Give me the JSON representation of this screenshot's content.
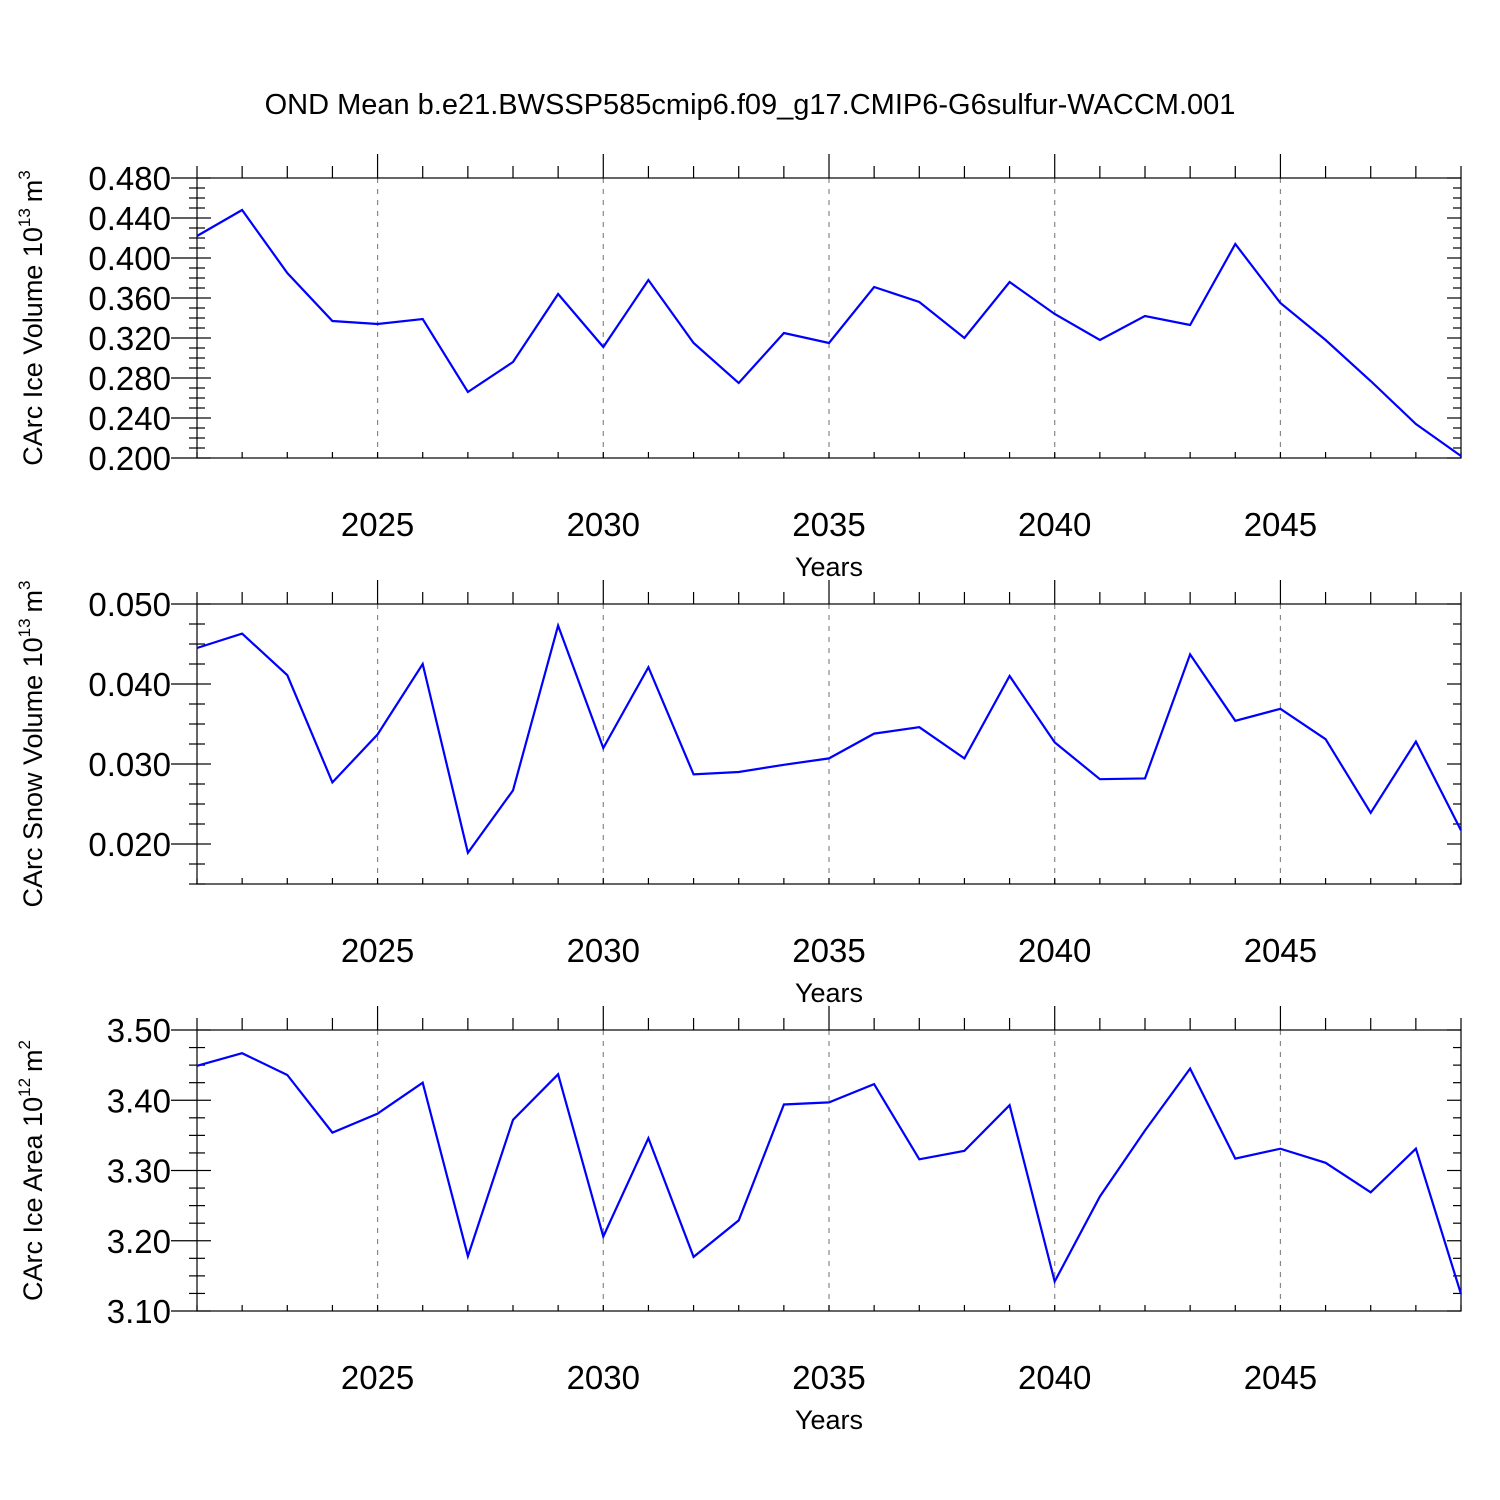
{
  "figure": {
    "title": "OND Mean b.e21.BWSSP585cmip6.f09_g17.CMIP6-G6sulfur-WACCM.001",
    "line_color": "#0000ff"
  },
  "chart_data": [
    {
      "type": "line",
      "title": "OND Mean b.e21.BWSSP585cmip6.f09_g17.CMIP6-G6sulfur-WACCM.001",
      "xlabel": "Years",
      "ylabel_prefix": "CArc Ice Volume 10",
      "ylabel_exponent": "13",
      "ylabel_unit": "m",
      "ylabel_unit_exponent": "3",
      "xlim": [
        2021,
        2049
      ],
      "ylim": [
        0.2,
        0.48
      ],
      "x_ticks": [
        2025,
        2030,
        2035,
        2040,
        2045
      ],
      "y_ticks": [
        0.2,
        0.24,
        0.28,
        0.32,
        0.36,
        0.4,
        0.44,
        0.48
      ],
      "y_tick_labels": [
        "0.200",
        "0.240",
        "0.280",
        "0.320",
        "0.360",
        "0.400",
        "0.440",
        "0.480"
      ],
      "grid": "vertical dashed at major x ticks",
      "series": [
        {
          "name": "CArc Ice Volume",
          "x": [
            2021,
            2022,
            2023,
            2024,
            2025,
            2026,
            2027,
            2028,
            2029,
            2030,
            2031,
            2032,
            2033,
            2034,
            2035,
            2036,
            2037,
            2038,
            2039,
            2040,
            2041,
            2042,
            2043,
            2044,
            2045,
            2046,
            2047,
            2048,
            2049
          ],
          "values": [
            0.422,
            0.448,
            0.385,
            0.337,
            0.334,
            0.339,
            0.266,
            0.296,
            0.364,
            0.311,
            0.378,
            0.315,
            0.275,
            0.325,
            0.315,
            0.371,
            0.356,
            0.32,
            0.376,
            0.344,
            0.318,
            0.342,
            0.333,
            0.414,
            0.355,
            0.318,
            0.277,
            0.234,
            0.202
          ]
        }
      ]
    },
    {
      "type": "line",
      "xlabel": "Years",
      "ylabel_prefix": "CArc Snow Volume 10",
      "ylabel_exponent": "13",
      "ylabel_unit": "m",
      "ylabel_unit_exponent": "3",
      "xlim": [
        2021,
        2049
      ],
      "ylim": [
        0.015,
        0.05
      ],
      "x_ticks": [
        2025,
        2030,
        2035,
        2040,
        2045
      ],
      "y_ticks": [
        0.02,
        0.03,
        0.04,
        0.05
      ],
      "y_tick_labels": [
        "0.020",
        "0.030",
        "0.040",
        "0.050"
      ],
      "grid": "vertical dashed at major x ticks",
      "series": [
        {
          "name": "CArc Snow Volume",
          "x": [
            2021,
            2022,
            2023,
            2024,
            2025,
            2026,
            2027,
            2028,
            2029,
            2030,
            2031,
            2032,
            2033,
            2034,
            2035,
            2036,
            2037,
            2038,
            2039,
            2040,
            2041,
            2042,
            2043,
            2044,
            2045,
            2046,
            2047,
            2048,
            2049
          ],
          "values": [
            0.0445,
            0.0463,
            0.0411,
            0.0277,
            0.0337,
            0.0425,
            0.0189,
            0.0267,
            0.0473,
            0.032,
            0.0421,
            0.0287,
            0.029,
            0.0299,
            0.0307,
            0.0338,
            0.0346,
            0.0307,
            0.041,
            0.0327,
            0.0281,
            0.0282,
            0.0437,
            0.0354,
            0.0369,
            0.0331,
            0.0239,
            0.0328,
            0.0217
          ]
        }
      ]
    },
    {
      "type": "line",
      "xlabel": "Years",
      "ylabel_prefix": "CArc Ice Area 10",
      "ylabel_exponent": "12",
      "ylabel_unit": "m",
      "ylabel_unit_exponent": "2",
      "xlim": [
        2021,
        2049
      ],
      "ylim": [
        3.1,
        3.5
      ],
      "x_ticks": [
        2025,
        2030,
        2035,
        2040,
        2045
      ],
      "y_ticks": [
        3.1,
        3.2,
        3.3,
        3.4,
        3.5
      ],
      "y_tick_labels": [
        "3.10",
        "3.20",
        "3.30",
        "3.40",
        "3.50"
      ],
      "grid": "vertical dashed at major x ticks",
      "series": [
        {
          "name": "CArc Ice Area",
          "x": [
            2021,
            2022,
            2023,
            2024,
            2025,
            2026,
            2027,
            2028,
            2029,
            2030,
            2031,
            2032,
            2033,
            2034,
            2035,
            2036,
            2037,
            2038,
            2039,
            2040,
            2041,
            2042,
            2043,
            2044,
            2045,
            2046,
            2047,
            2048,
            2049
          ],
          "values": [
            3.449,
            3.467,
            3.436,
            3.354,
            3.381,
            3.425,
            3.178,
            3.372,
            3.437,
            3.206,
            3.346,
            3.177,
            3.229,
            3.394,
            3.397,
            3.423,
            3.316,
            3.328,
            3.393,
            3.142,
            3.263,
            3.357,
            3.445,
            3.317,
            3.331,
            3.311,
            3.269,
            3.331,
            3.124
          ]
        }
      ]
    }
  ]
}
